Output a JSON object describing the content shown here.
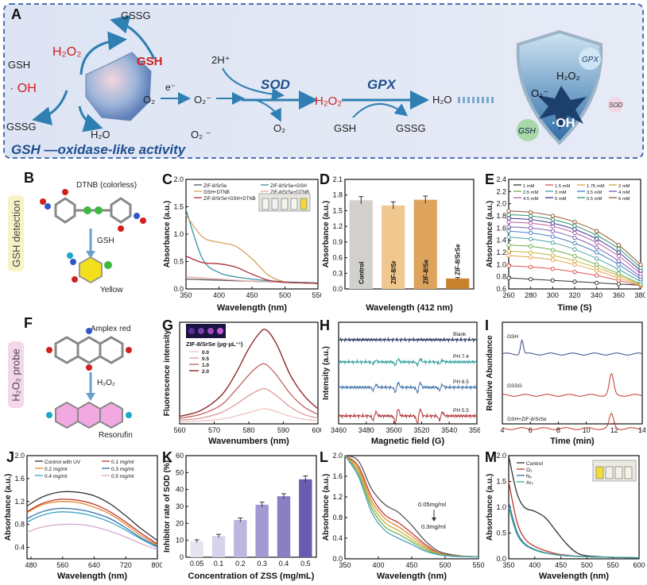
{
  "panel_a": {
    "label": "A",
    "nodes": {
      "gssg_top": "GSSG",
      "h2o2_left": "H₂O₂",
      "gsh_red": "GSH",
      "gsh_left": "GSH",
      "oh_left": "· OH",
      "gssg_left": "GSSG",
      "h2o_left": "H₂O",
      "e_minus": "e⁻",
      "o2": "O₂",
      "o2_minus": "O₂⁻",
      "two_h": "2H⁺",
      "sod": "SOD",
      "gpx": "GPX",
      "h2o2_mid": "H₂O₂",
      "h2o_right": "H₂O",
      "o2_minus_low": "O₂ ⁻",
      "o2_low": "O₂",
      "gsh_low": "GSH",
      "gssg_low": "GSSG",
      "caption": "GSH —oxidase-like  activity"
    },
    "shield": {
      "gpx": "GPX",
      "h2o2": "H₂O₂",
      "o2": "O₂⁻",
      "oh": "·OH",
      "sod": "SOD",
      "gsh": "GSH"
    }
  },
  "side_tags": {
    "gsh_detection": "GSH detection",
    "h2o2_probe": "H₂O₂ probe"
  },
  "panel_b": {
    "label": "B",
    "dtnb": "DTNB (colorless)",
    "gsh": "GSH",
    "yellow": "Yellow"
  },
  "panel_f": {
    "label": "F",
    "amplex": "Amplex red",
    "h2o2": "H₂O₂",
    "resorufin": "Resorufin"
  },
  "chart_data": [
    {
      "id": "C",
      "type": "line",
      "xlabel": "Wavelength (nm)",
      "ylabel": "Absorbance (a.u.)",
      "xlim": [
        350,
        550
      ],
      "ylim": [
        0,
        2.0
      ],
      "xticks": [
        350,
        400,
        450,
        500,
        550
      ],
      "yticks": [
        0,
        0.5,
        1.0,
        1.5,
        2.0
      ],
      "x": [
        350,
        375,
        400,
        425,
        450,
        475,
        500,
        525,
        550
      ],
      "series": [
        {
          "name": "ZIF-8/SrSe",
          "color": "#555555",
          "values": [
            0.18,
            0.17,
            0.16,
            0.15,
            0.14,
            0.13,
            0.12,
            0.11,
            0.1
          ]
        },
        {
          "name": "ZIF-8/SrSe+GSH",
          "color": "#3a8fa5",
          "values": [
            1.45,
            0.55,
            0.3,
            0.22,
            0.18,
            0.15,
            0.13,
            0.12,
            0.11
          ]
        },
        {
          "name": "GSH+DTNB",
          "color": "#d8a15a",
          "values": [
            1.35,
            0.95,
            0.85,
            0.78,
            0.55,
            0.25,
            0.13,
            0.11,
            0.1
          ]
        },
        {
          "name": "ZIF-8/SrSe+DTNB",
          "color": "#e6a8a8",
          "values": [
            0.22,
            0.2,
            0.18,
            0.16,
            0.14,
            0.13,
            0.12,
            0.11,
            0.1
          ]
        },
        {
          "name": "ZIF-8/SrSe+GSH+DTNB",
          "color": "#b0303a",
          "values": [
            0.6,
            0.48,
            0.46,
            0.4,
            0.27,
            0.16,
            0.12,
            0.11,
            0.1
          ]
        }
      ]
    },
    {
      "id": "D",
      "type": "bar",
      "xlabel": "Wavelength (412 nm)",
      "ylabel": "Absorbance (a.u.)",
      "ylim": [
        0,
        2.1
      ],
      "yticks": [
        0.0,
        0.3,
        0.6,
        0.9,
        1.2,
        1.5,
        1.8,
        2.1
      ],
      "categories": [
        "Control",
        "ZIF-8/Sr",
        "ZIF-8/Se",
        "ZIF-8/SrSe"
      ],
      "values": [
        1.7,
        1.6,
        1.71,
        0.2
      ],
      "errors": [
        0.07,
        0.07,
        0.07,
        0.02
      ],
      "colors": [
        "#d2d0cc",
        "#f0c78f",
        "#dea45e",
        "#c9822c"
      ]
    },
    {
      "id": "E",
      "type": "line",
      "xlabel": "Time (S)",
      "ylabel": "Absorbance (a.u.)",
      "xlim": [
        260,
        380
      ],
      "ylim": [
        0.6,
        2.4
      ],
      "xticks": [
        260,
        280,
        300,
        320,
        340,
        360,
        380
      ],
      "yticks": [
        0.6,
        0.8,
        1.0,
        1.2,
        1.4,
        1.6,
        1.8,
        2.0,
        2.2,
        2.4
      ],
      "x": [
        260,
        280,
        300,
        320,
        340,
        360,
        380
      ],
      "series": [
        {
          "name": "1 mM",
          "color": "#333333",
          "values": [
            0.78,
            0.76,
            0.74,
            0.72,
            0.7,
            0.68,
            0.66
          ]
        },
        {
          "name": "1.5 mM",
          "color": "#d9534f",
          "values": [
            0.98,
            0.96,
            0.93,
            0.88,
            0.82,
            0.74,
            0.65
          ]
        },
        {
          "name": "1.75 mM",
          "color": "#e8a24c",
          "values": [
            1.15,
            1.12,
            1.08,
            1.0,
            0.9,
            0.78,
            0.66
          ]
        },
        {
          "name": "2 mM",
          "color": "#c7b23a",
          "values": [
            1.22,
            1.2,
            1.15,
            1.06,
            0.95,
            0.82,
            0.67
          ]
        },
        {
          "name": "2.5 mM",
          "color": "#6fae4f",
          "values": [
            1.32,
            1.3,
            1.24,
            1.14,
            1.0,
            0.85,
            0.68
          ]
        },
        {
          "name": "3 mM",
          "color": "#4aa3a0",
          "values": [
            1.45,
            1.42,
            1.36,
            1.25,
            1.1,
            0.92,
            0.72
          ]
        },
        {
          "name": "3.5 mM",
          "color": "#4a7fc0",
          "values": [
            1.55,
            1.52,
            1.46,
            1.35,
            1.2,
            1.0,
            0.76
          ]
        },
        {
          "name": "4 mM",
          "color": "#7a5fb0",
          "values": [
            1.62,
            1.6,
            1.55,
            1.44,
            1.28,
            1.06,
            0.8
          ]
        },
        {
          "name": "4.5 mM",
          "color": "#b65fa6",
          "values": [
            1.7,
            1.68,
            1.63,
            1.52,
            1.36,
            1.14,
            0.85
          ]
        },
        {
          "name": "5 mM",
          "color": "#3b3b8f",
          "values": [
            1.76,
            1.74,
            1.68,
            1.58,
            1.42,
            1.2,
            0.9
          ]
        },
        {
          "name": "5.5 mM",
          "color": "#2f8f6f",
          "values": [
            1.82,
            1.8,
            1.74,
            1.64,
            1.48,
            1.26,
            0.95
          ]
        },
        {
          "name": "6 mM",
          "color": "#8f5a2f",
          "values": [
            1.88,
            1.86,
            1.8,
            1.7,
            1.55,
            1.32,
            1.0
          ]
        }
      ]
    },
    {
      "id": "G",
      "type": "line",
      "xlabel": "Wavenumbers (nm)",
      "ylabel": "Fluorescence intensity",
      "legend_title": "ZIF-8/SrSe (μg·μL⁻¹)",
      "xlim": [
        560,
        600
      ],
      "xticks": [
        560,
        570,
        580,
        590,
        600
      ],
      "x": [
        560,
        566,
        572,
        576,
        580,
        583,
        585,
        588,
        592,
        596,
        600
      ],
      "series": [
        {
          "name": "0.0",
          "color": "#f2c8c8",
          "values": [
            0.02,
            0.03,
            0.05,
            0.08,
            0.12,
            0.15,
            0.16,
            0.13,
            0.08,
            0.05,
            0.03
          ]
        },
        {
          "name": "0.5",
          "color": "#e0a0a0",
          "values": [
            0.04,
            0.06,
            0.12,
            0.2,
            0.3,
            0.36,
            0.37,
            0.3,
            0.18,
            0.1,
            0.06
          ]
        },
        {
          "name": "1.0",
          "color": "#c66b6b",
          "values": [
            0.06,
            0.1,
            0.2,
            0.35,
            0.52,
            0.62,
            0.63,
            0.52,
            0.32,
            0.18,
            0.1
          ]
        },
        {
          "name": "2.0",
          "color": "#8e2a2a",
          "values": [
            0.08,
            0.14,
            0.3,
            0.52,
            0.8,
            0.96,
            1.0,
            0.85,
            0.52,
            0.3,
            0.16
          ]
        }
      ]
    },
    {
      "id": "H",
      "type": "line",
      "xlabel": "Magnetic field (G)",
      "ylabel": "Intensity (a.u.)",
      "xlim": [
        3460,
        3560
      ],
      "xticks": [
        3460,
        3480,
        3500,
        3520,
        3540,
        3560
      ],
      "series": [
        {
          "name": "Blank",
          "color": "#1f2a55"
        },
        {
          "name": "PH  7.4",
          "color": "#2a9a9a"
        },
        {
          "name": "PH  6.5",
          "color": "#3c6fa8"
        },
        {
          "name": "PH  5.5",
          "color": "#b03030"
        }
      ]
    },
    {
      "id": "I",
      "type": "line",
      "xlabel": "Time (min)",
      "ylabel": "Relative Abundance",
      "xlim": [
        4,
        14
      ],
      "xticks": [
        4,
        6,
        8,
        10,
        12,
        14
      ],
      "series": [
        {
          "name": "GSH",
          "color": "#3a4a8a",
          "peak": 5.4
        },
        {
          "name": "GSSG",
          "color": "#c0392b",
          "peak": 11.8
        },
        {
          "name": "GSH+ZIF-8/SrSe",
          "color": "#c0392b",
          "peak": 11.8
        }
      ]
    },
    {
      "id": "J",
      "type": "line",
      "xlabel": "Wavelength (nm)",
      "ylabel": "Absorbance (a.u.)",
      "xlim": [
        470,
        800
      ],
      "ylim": [
        0.2,
        2.0
      ],
      "xticks": [
        480,
        560,
        640,
        720,
        800
      ],
      "yticks": [
        0.4,
        0.8,
        1.2,
        1.6,
        2.0
      ],
      "x": [
        470,
        500,
        530,
        560,
        600,
        640,
        680,
        720,
        760,
        800
      ],
      "series": [
        {
          "name": "Control with UV",
          "color": "#333333",
          "values": [
            1.12,
            1.25,
            1.33,
            1.37,
            1.36,
            1.3,
            1.16,
            0.95,
            0.72,
            0.52
          ]
        },
        {
          "name": "0.1 mg/ml",
          "color": "#c0392b",
          "values": [
            1.02,
            1.14,
            1.21,
            1.24,
            1.22,
            1.15,
            1.02,
            0.84,
            0.64,
            0.46
          ]
        },
        {
          "name": "0.2 mg/ml",
          "color": "#e08a3a",
          "values": [
            1.0,
            1.12,
            1.18,
            1.2,
            1.18,
            1.1,
            0.98,
            0.8,
            0.6,
            0.44
          ]
        },
        {
          "name": "0.3 mg/ml",
          "color": "#2e6fa8",
          "values": [
            0.9,
            1.0,
            1.06,
            1.08,
            1.06,
            1.0,
            0.9,
            0.74,
            0.56,
            0.42
          ]
        },
        {
          "name": "0.4 mg/ml",
          "color": "#3aa5c8",
          "values": [
            0.84,
            0.94,
            1.0,
            1.02,
            1.0,
            0.94,
            0.84,
            0.7,
            0.54,
            0.4
          ]
        },
        {
          "name": "0.5 mg/ml",
          "color": "#d8a8d0",
          "values": [
            0.66,
            0.74,
            0.78,
            0.8,
            0.8,
            0.76,
            0.68,
            0.58,
            0.46,
            0.36
          ]
        }
      ]
    },
    {
      "id": "K",
      "type": "bar",
      "xlabel": "Concentration of ZSS (mg/mL)",
      "ylabel": "Inhibitor rate of SOD (%)",
      "ylim": [
        0,
        60
      ],
      "yticks": [
        0,
        10,
        20,
        30,
        40,
        50,
        60
      ],
      "categories": [
        "0.05",
        "0.1",
        "0.2",
        "0.3",
        "0.4",
        "0.5"
      ],
      "values": [
        9.5,
        12.5,
        22,
        31,
        36,
        46
      ],
      "errors": [
        0.8,
        1.0,
        1.2,
        1.5,
        1.5,
        2.0
      ],
      "colors": [
        "#e6e4f1",
        "#d6d3ea",
        "#bdb7df",
        "#a299d0",
        "#8a7fc4",
        "#6a5bb0"
      ]
    },
    {
      "id": "L",
      "type": "line",
      "xlabel": "Wavelength (nm)",
      "ylabel": "Absorbance (a.u.)",
      "xlim": [
        350,
        550
      ],
      "ylim": [
        0,
        2.0
      ],
      "xticks": [
        350,
        400,
        450,
        500,
        550
      ],
      "yticks": [
        0.0,
        0.4,
        0.8,
        1.2,
        1.6,
        2.0
      ],
      "annotation_top": "0.05mg/ml",
      "annotation_bottom": "0.3mg/ml",
      "x": [
        350,
        370,
        390,
        410,
        430,
        450,
        470,
        490,
        510,
        530,
        550
      ],
      "series": [
        {
          "color": "#555555",
          "values": [
            2.0,
            1.9,
            1.35,
            1.05,
            0.9,
            0.65,
            0.35,
            0.15,
            0.08,
            0.05,
            0.04
          ]
        },
        {
          "color": "#c0392b",
          "values": [
            2.0,
            1.8,
            1.2,
            0.85,
            0.7,
            0.5,
            0.28,
            0.12,
            0.07,
            0.05,
            0.04
          ]
        },
        {
          "color": "#e08a3a",
          "values": [
            2.0,
            1.75,
            1.12,
            0.78,
            0.62,
            0.44,
            0.24,
            0.11,
            0.06,
            0.05,
            0.04
          ]
        },
        {
          "color": "#c7b23a",
          "values": [
            2.0,
            1.7,
            1.05,
            0.7,
            0.55,
            0.38,
            0.21,
            0.1,
            0.06,
            0.05,
            0.04
          ]
        },
        {
          "color": "#6fae4f",
          "values": [
            2.0,
            1.65,
            0.98,
            0.62,
            0.48,
            0.33,
            0.18,
            0.09,
            0.06,
            0.04,
            0.04
          ]
        },
        {
          "color": "#4aa3c0",
          "values": [
            2.0,
            1.6,
            0.9,
            0.55,
            0.4,
            0.28,
            0.15,
            0.08,
            0.05,
            0.04,
            0.04
          ]
        }
      ]
    },
    {
      "id": "M",
      "type": "line",
      "xlabel": "Wavelength (nm)",
      "ylabel": "Absorbance (a.u.)",
      "xlim": [
        350,
        600
      ],
      "ylim": [
        0,
        2.0
      ],
      "xticks": [
        350,
        400,
        450,
        500,
        550,
        600
      ],
      "yticks": [
        0.0,
        0.5,
        1.0,
        1.5,
        2.0
      ],
      "x": [
        350,
        365,
        380,
        400,
        420,
        440,
        460,
        480,
        500,
        550,
        600
      ],
      "series": [
        {
          "name": "Control",
          "color": "#333333",
          "values": [
            2.0,
            1.3,
            1.0,
            0.92,
            0.8,
            0.55,
            0.3,
            0.12,
            0.06,
            0.03,
            0.02
          ]
        },
        {
          "name": "O₂",
          "color": "#c0392b",
          "values": [
            1.5,
            0.75,
            0.4,
            0.24,
            0.16,
            0.1,
            0.07,
            0.05,
            0.04,
            0.03,
            0.02
          ]
        },
        {
          "name": "N₂",
          "color": "#2e6fa8",
          "values": [
            1.1,
            0.55,
            0.3,
            0.18,
            0.12,
            0.08,
            0.06,
            0.05,
            0.04,
            0.03,
            0.02
          ]
        },
        {
          "name": "Ar₂",
          "color": "#3aa59a",
          "values": [
            1.0,
            0.5,
            0.28,
            0.17,
            0.11,
            0.08,
            0.06,
            0.05,
            0.04,
            0.03,
            0.02
          ]
        }
      ]
    }
  ]
}
